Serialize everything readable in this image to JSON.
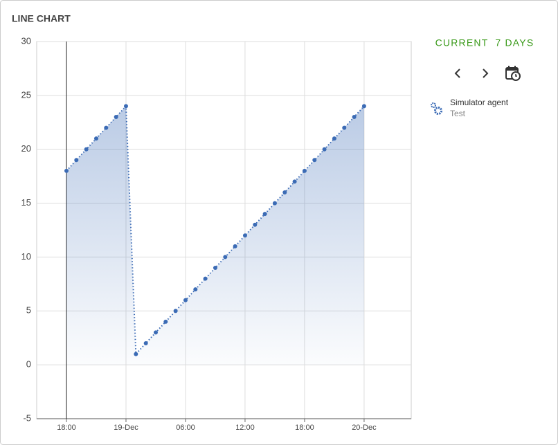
{
  "chart_data": {
    "type": "line",
    "title": "LINE CHART",
    "period": "CURRENT  7 DAYS",
    "x": [
      0,
      1,
      2,
      3,
      4,
      5,
      6,
      7,
      8,
      9,
      10,
      11,
      12,
      13,
      14,
      15,
      16,
      17,
      18,
      19,
      20,
      21,
      22,
      23,
      24,
      25,
      26,
      27,
      28,
      29,
      30
    ],
    "series": [
      {
        "name": "Simulator agent",
        "description": "Test",
        "color": "#3b6bb5",
        "values": [
          18,
          19,
          20,
          21,
          22,
          23,
          24,
          1,
          2,
          3,
          4,
          5,
          6,
          7,
          8,
          9,
          10,
          11,
          12,
          13,
          14,
          15,
          16,
          17,
          18,
          19,
          20,
          21,
          22,
          23,
          24
        ]
      }
    ],
    "xlim": [
      -3,
      34.75
    ],
    "xticks": [
      {
        "value": 0,
        "label": "18:00"
      },
      {
        "value": 6,
        "label": "19-Dec"
      },
      {
        "value": 12,
        "label": "06:00"
      },
      {
        "value": 18,
        "label": "12:00"
      },
      {
        "value": 24,
        "label": "18:00"
      },
      {
        "value": 30,
        "label": "20-Dec"
      }
    ],
    "ylim": [
      -5,
      30
    ],
    "yticks": [
      -5,
      0,
      5,
      10,
      15,
      20,
      25,
      30
    ],
    "grid": true
  }
}
